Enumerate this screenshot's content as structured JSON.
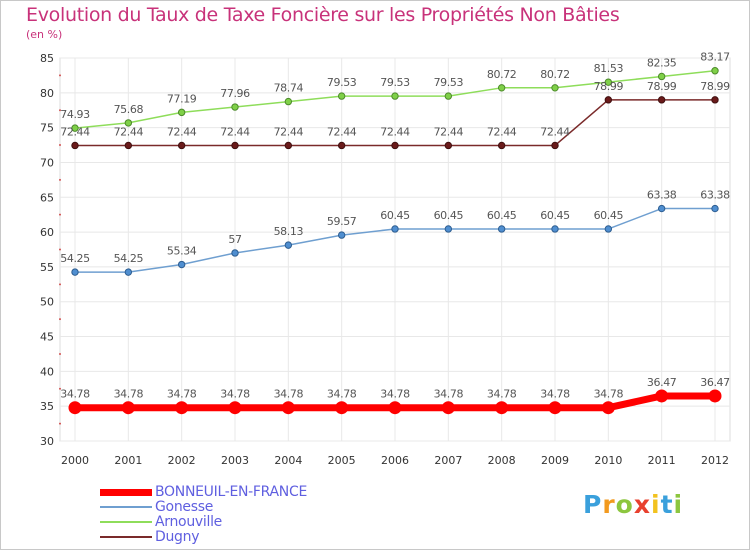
{
  "title": "Evolution du Taux de Taxe Foncière sur les Propriétés Non Bâties",
  "unit_label": "(en %)",
  "logo": {
    "text": "Proxiti",
    "letters": [
      {
        "ch": "P",
        "color": "#3aa0dc"
      },
      {
        "ch": "r",
        "color": "#f29a1f"
      },
      {
        "ch": "o",
        "color": "#8cc63f"
      },
      {
        "ch": "x",
        "color": "#e8402e"
      },
      {
        "ch": "i",
        "color": "#f2c21f"
      },
      {
        "ch": "t",
        "color": "#3aa0dc"
      },
      {
        "ch": "i",
        "color": "#8cc63f"
      }
    ]
  },
  "chart_data": {
    "type": "line",
    "title": "Evolution du Taux de Taxe Foncière sur les Propriétés Non Bâties",
    "ylabel": "(en %)",
    "xlabel": "",
    "x": [
      "2000",
      "2001",
      "2002",
      "2003",
      "2004",
      "2005",
      "2006",
      "2007",
      "2008",
      "2009",
      "2010",
      "2011",
      "2012"
    ],
    "ylim": [
      30,
      85
    ],
    "yticks": [
      30,
      35,
      40,
      45,
      50,
      55,
      60,
      65,
      70,
      75,
      80,
      85
    ],
    "grid": true,
    "legend_position": "bottom-left",
    "series": [
      {
        "name": "BONNEUIL-EN-FRANCE",
        "color": "#ff0000",
        "values": [
          34.78,
          34.78,
          34.78,
          34.78,
          34.78,
          34.78,
          34.78,
          34.78,
          34.78,
          34.78,
          34.78,
          36.47,
          36.47
        ],
        "labels": [
          "34.78",
          "34.78",
          "34.78",
          "34.78",
          "34.78",
          "34.78",
          "34.78",
          "34.78",
          "34.78",
          "34.78",
          "34.78",
          "36.47",
          "36.47"
        ]
      },
      {
        "name": "Gonesse",
        "color": "#6f9fd0",
        "values": [
          54.25,
          54.25,
          55.34,
          57,
          58.13,
          59.57,
          60.45,
          60.45,
          60.45,
          60.45,
          60.45,
          63.38,
          63.38
        ],
        "labels": [
          "54.25",
          "54.25",
          "55.34",
          "57",
          "58.13",
          "59.57",
          "60.45",
          "60.45",
          "60.45",
          "60.45",
          "60.45",
          "63.38",
          "63.38"
        ]
      },
      {
        "name": "Arnouville",
        "color": "#8edd5a",
        "values": [
          74.93,
          75.68,
          77.19,
          77.96,
          78.74,
          79.53,
          79.53,
          79.53,
          80.72,
          80.72,
          81.53,
          82.35,
          83.17
        ],
        "labels": [
          "74.93",
          "75.68",
          "77.19",
          "77.96",
          "78.74",
          "79.53",
          "79.53",
          "79.53",
          "80.72",
          "80.72",
          "81.53",
          "82.35",
          "83.17"
        ]
      },
      {
        "name": "Dugny",
        "color": "#7a2a2a",
        "values": [
          72.44,
          72.44,
          72.44,
          72.44,
          72.44,
          72.44,
          72.44,
          72.44,
          72.44,
          72.44,
          78.99,
          78.99,
          78.99
        ],
        "labels": [
          "72.44",
          "72.44",
          "72.44",
          "72.44",
          "72.44",
          "72.44",
          "72.44",
          "72.44",
          "72.44",
          "72.44",
          "78.99",
          "78.99",
          "78.99"
        ]
      }
    ]
  }
}
